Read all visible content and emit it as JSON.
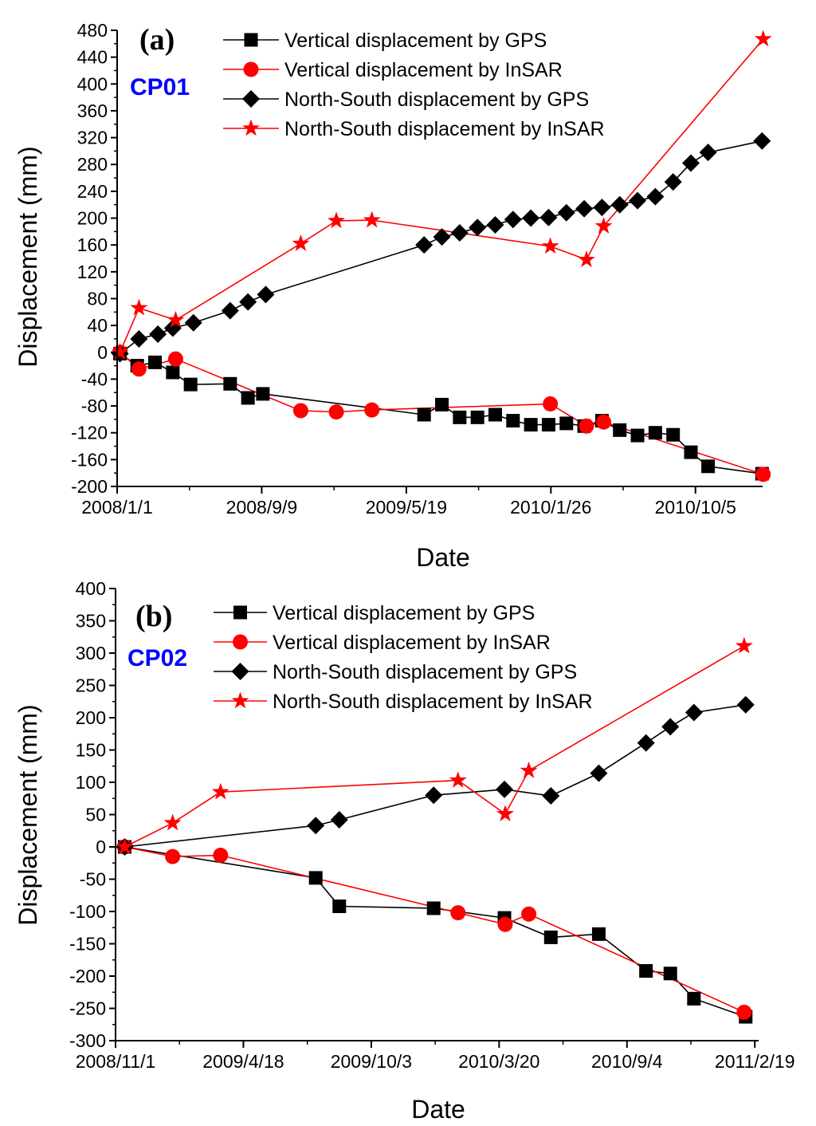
{
  "colors": {
    "black": "#000000",
    "red": "#ff0000",
    "station": "#0000ff"
  },
  "chart_data": [
    {
      "type": "line",
      "panel_label": "(a)",
      "station": "CP01",
      "xlabel": "Date",
      "ylabel": "Displacement (mm)",
      "ylim": [
        -200,
        480
      ],
      "yticks": [
        "-200",
        "-160",
        "-120",
        "-80",
        "-40",
        "0",
        "40",
        "80",
        "120",
        "160",
        "200",
        "240",
        "280",
        "320",
        "360",
        "400",
        "440",
        "480"
      ],
      "xlim_days": [
        0,
        1125
      ],
      "xticks": [
        {
          "day": 0,
          "label": "2008/1/1"
        },
        {
          "day": 252,
          "label": "2008/9/9"
        },
        {
          "day": 504,
          "label": "2009/5/19"
        },
        {
          "day": 756,
          "label": "2010/1/26"
        },
        {
          "day": 1008,
          "label": "2010/10/5"
        }
      ],
      "legend": [
        "Vertical displacement by GPS",
        "Vertical displacement by InSAR",
        "North-South displacement by GPS",
        "North-South displacement by InSAR"
      ],
      "series": [
        {
          "name": "Vertical displacement by GPS",
          "marker": "square",
          "color": "#000000",
          "x": [
            5,
            35,
            66,
            97,
            128,
            197,
            228,
            254,
            535,
            566,
            597,
            628,
            659,
            690,
            721,
            752,
            783,
            814,
            845,
            876,
            907,
            938,
            969,
            1000,
            1030,
            1124
          ],
          "y": [
            -2,
            -20,
            -15,
            -30,
            -48,
            -47,
            -68,
            -62,
            -93,
            -78,
            -97,
            -97,
            -93,
            -102,
            -108,
            -108,
            -106,
            -110,
            -102,
            -116,
            -124,
            -120,
            -123,
            -149,
            -170,
            -181
          ]
        },
        {
          "name": "Vertical displacement by InSAR",
          "marker": "circle",
          "color": "#ff0000",
          "x": [
            5,
            38,
            102,
            320,
            382,
            444,
            755,
            818,
            848,
            1126
          ],
          "y": [
            0,
            -25,
            -10,
            -87,
            -89,
            -86,
            -77,
            -110,
            -104,
            -182
          ]
        },
        {
          "name": "North-South displacement by GPS",
          "marker": "diamond",
          "color": "#000000",
          "x": [
            5,
            38,
            71,
            97,
            133,
            197,
            228,
            259,
            535,
            566,
            597,
            628,
            659,
            690,
            721,
            752,
            783,
            814,
            845,
            876,
            907,
            938,
            969,
            1000,
            1030,
            1124
          ],
          "y": [
            -2,
            20,
            27,
            36,
            44,
            62,
            75,
            86,
            160,
            172,
            178,
            186,
            190,
            198,
            200,
            201,
            208,
            214,
            216,
            220,
            226,
            232,
            254,
            282,
            298,
            315
          ]
        },
        {
          "name": "North-South displacement by InSAR",
          "marker": "star",
          "color": "#ff0000",
          "x": [
            5,
            38,
            102,
            320,
            382,
            444,
            755,
            818,
            848,
            1126
          ],
          "y": [
            0,
            66,
            48,
            162,
            196,
            197,
            158,
            138,
            188,
            467
          ]
        }
      ]
    },
    {
      "type": "line",
      "panel_label": "(b)",
      "station": "CP02",
      "xlabel": "Date",
      "ylabel": "Displacement (mm)",
      "ylim": [
        -300,
        400
      ],
      "yticks": [
        "-300",
        "-250",
        "-200",
        "-150",
        "-100",
        "-50",
        "0",
        "50",
        "100",
        "150",
        "200",
        "250",
        "300",
        "350",
        "400"
      ],
      "xlim_days": [
        0,
        845
      ],
      "xticks": [
        {
          "day": 0,
          "label": "2008/11/1"
        },
        {
          "day": 168,
          "label": "2009/4/18"
        },
        {
          "day": 336,
          "label": "2009/10/3"
        },
        {
          "day": 504,
          "label": "2010/3/20"
        },
        {
          "day": 672,
          "label": "2010/9/4"
        },
        {
          "day": 840,
          "label": "2011/2/19"
        }
      ],
      "legend": [
        "Vertical displacement by GPS",
        "Vertical displacement by InSAR",
        "North-South displacement by GPS",
        "North-South displacement by InSAR"
      ],
      "series": [
        {
          "name": "Vertical displacement by GPS",
          "marker": "square",
          "color": "#000000",
          "x": [
            12,
            263,
            294,
            418,
            511,
            572,
            635,
            697,
            729,
            760,
            828
          ],
          "y": [
            0,
            -48,
            -92,
            -95,
            -110,
            -140,
            -135,
            -192,
            -196,
            -235,
            -263
          ]
        },
        {
          "name": "Vertical displacement by InSAR",
          "marker": "circle",
          "color": "#ff0000",
          "x": [
            12,
            75,
            138,
            450,
            512,
            543,
            826
          ],
          "y": [
            0,
            -15,
            -13,
            -102,
            -120,
            -104,
            -256
          ]
        },
        {
          "name": "North-South displacement by GPS",
          "marker": "diamond",
          "color": "#000000",
          "x": [
            12,
            263,
            294,
            418,
            511,
            572,
            635,
            697,
            729,
            760,
            828
          ],
          "y": [
            0,
            33,
            42,
            80,
            89,
            79,
            114,
            161,
            186,
            208,
            220
          ]
        },
        {
          "name": "North-South displacement by InSAR",
          "marker": "star",
          "color": "#ff0000",
          "x": [
            12,
            75,
            138,
            450,
            512,
            543,
            826
          ],
          "y": [
            0,
            37,
            85,
            103,
            51,
            118,
            311
          ]
        }
      ]
    }
  ]
}
